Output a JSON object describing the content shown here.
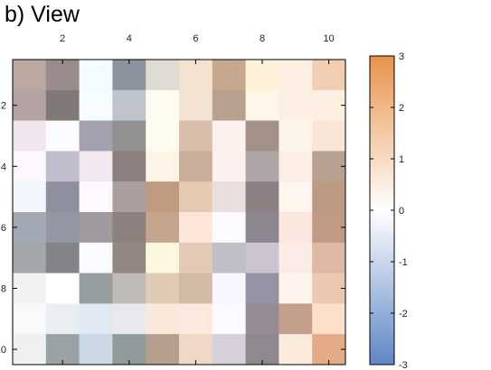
{
  "panel_title": "b)  View",
  "chart_data": {
    "type": "heatmap",
    "title": "b)  View",
    "xlabel": "",
    "ylabel": "",
    "x_ticks": [
      2,
      4,
      6,
      8,
      10
    ],
    "y_ticks": [
      2,
      4,
      6,
      8,
      10
    ],
    "x_range": [
      0.5,
      10.5
    ],
    "y_range": [
      0.5,
      10.5
    ],
    "colorbar": {
      "range": [
        -3,
        3
      ],
      "ticks": [
        3,
        2,
        1,
        0,
        -1,
        -2,
        -3
      ],
      "low_color": "#5f86c6",
      "mid_color": "#ffffff",
      "high_color": "#e8934a"
    },
    "cells": [
      [
        "#bca8a0",
        "#9a8c8c",
        "#f4fcff",
        "#8a939e",
        "#e0dbd2",
        "#f3e2cf",
        "#c6a88e",
        "#fef1da",
        "#fdefe2",
        "#f1ceb2"
      ],
      [
        "#b5a2a2",
        "#807879",
        "#f6fcff",
        "#c0c5cd",
        "#fffbf0",
        "#f3e2d2",
        "#b9a190",
        "#fef7e8",
        "#fdf0e3",
        "#fdf0e3"
      ],
      [
        "#f1e6ee",
        "#fcfbff",
        "#a3a1ad",
        "#939091",
        "#fffbf1",
        "#d7bfab",
        "#fdf1ee",
        "#a39188",
        "#fef5ea",
        "#fae5d9"
      ],
      [
        "#fbf7fd",
        "#c0bdcc",
        "#f1e8f2",
        "#8c7f7d",
        "#fef4e5",
        "#c9ae9c",
        "#fcf1ef",
        "#ada5a6",
        "#fdeee5",
        "#b6a192"
      ],
      [
        "#f3f6fd",
        "#8f909f",
        "#fdf9fe",
        "#ac9e9e",
        "#bf9c80",
        "#e7cab2",
        "#e8dfde",
        "#8c8083",
        "#fef6ef",
        "#bd9a82"
      ],
      [
        "#a3a9b4",
        "#9497a3",
        "#a09a9e",
        "#8d817f",
        "#c3a48d",
        "#fde5d7",
        "#fdfbff",
        "#8d868e",
        "#fce7df",
        "#c09a84"
      ],
      [
        "#a4a7a9",
        "#838487",
        "#fbfbff",
        "#938783",
        "#fef7e0",
        "#e3cab6",
        "#c0bfc9",
        "#c9c4d0",
        "#fbebe6",
        "#dfb9a5"
      ],
      [
        "#f2f2f2",
        "#ffffff",
        "#969d9f",
        "#bebab6",
        "#dfcab6",
        "#d1bba7",
        "#f6f6fe",
        "#9393a3",
        "#fdf3ec",
        "#ebc8b1"
      ],
      [
        "#f8f9f9",
        "#e8eef1",
        "#e0e8f2",
        "#e8e9ec",
        "#fae8db",
        "#fce8dc",
        "#fbfbff",
        "#958c95",
        "#c39f8c",
        "#fde0c9"
      ],
      [
        "#eef1f0",
        "#9aa2a4",
        "#ccd8e5",
        "#919a9b",
        "#b5a08e",
        "#f0d8c7",
        "#d6d0da",
        "#8f8890",
        "#fcebdc",
        "#e3ab88"
      ]
    ]
  }
}
